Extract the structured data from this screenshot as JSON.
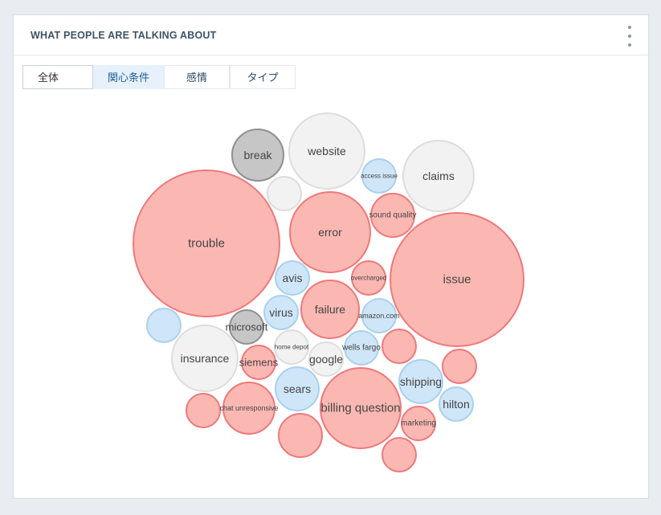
{
  "panel": {
    "title": "WHAT PEOPLE ARE TALKING ABOUT",
    "menu_icon": "kebab-menu-icon"
  },
  "tabs": [
    {
      "label": "全体",
      "active": false
    },
    {
      "label": "関心条件",
      "active": true
    },
    {
      "label": "感情",
      "active": false
    },
    {
      "label": "タイプ",
      "active": false
    }
  ],
  "colors": {
    "negative_fill": "#fbb8b3",
    "negative_stroke": "#f0787a",
    "neutral_fill": "#f2f2f2",
    "neutral_stroke": "#dddddd",
    "positive_fill": "#cfe6f8",
    "positive_stroke": "#a9d0ee",
    "gray_fill": "#c6c6c6",
    "gray_stroke": "#8f8f8f"
  },
  "chart_data": {
    "type": "bubble",
    "title": "",
    "bubbles": [
      {
        "label": "trouble",
        "sentiment": "negative"
      },
      {
        "label": "issue",
        "sentiment": "negative"
      },
      {
        "label": "billing question",
        "sentiment": "negative"
      },
      {
        "label": "error",
        "sentiment": "negative"
      },
      {
        "label": "website",
        "sentiment": "neutral"
      },
      {
        "label": "claims",
        "sentiment": "neutral"
      },
      {
        "label": "insurance",
        "sentiment": "neutral"
      },
      {
        "label": "break",
        "sentiment": "gray"
      },
      {
        "label": "failure",
        "sentiment": "negative"
      },
      {
        "label": "chat unresponsive",
        "sentiment": "negative"
      },
      {
        "label": "sears",
        "sentiment": "positive"
      },
      {
        "label": "shipping",
        "sentiment": "positive"
      },
      {
        "label": "sound quality",
        "sentiment": "negative"
      },
      {
        "label": "avis",
        "sentiment": "positive"
      },
      {
        "label": "virus",
        "sentiment": "positive"
      },
      {
        "label": "amazon.com",
        "sentiment": "positive"
      },
      {
        "label": "microsoft",
        "sentiment": "gray"
      },
      {
        "label": "siemens",
        "sentiment": "negative"
      },
      {
        "label": "google",
        "sentiment": "neutral"
      },
      {
        "label": "home depot",
        "sentiment": "neutral"
      },
      {
        "label": "wells fargo",
        "sentiment": "positive"
      },
      {
        "label": "overcharged",
        "sentiment": "negative"
      },
      {
        "label": "access issue",
        "sentiment": "positive"
      },
      {
        "label": "hilton",
        "sentiment": "positive"
      },
      {
        "label": "marketing",
        "sentiment": "negative"
      },
      {
        "label": "",
        "sentiment": "negative"
      },
      {
        "label": "",
        "sentiment": "negative"
      },
      {
        "label": "",
        "sentiment": "negative"
      },
      {
        "label": "",
        "sentiment": "negative"
      },
      {
        "label": "",
        "sentiment": "negative"
      },
      {
        "label": "",
        "sentiment": "positive"
      },
      {
        "label": "",
        "sentiment": "neutral"
      }
    ]
  }
}
